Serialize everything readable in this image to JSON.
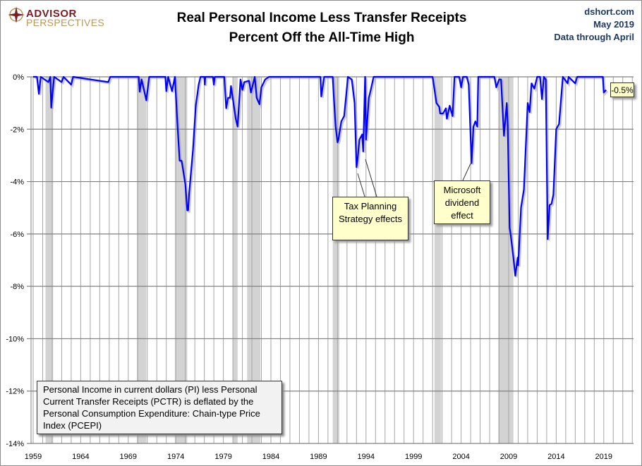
{
  "logo": {
    "line1": "ADVISOR",
    "line2": "PERSPECTIVES"
  },
  "title": {
    "line1": "Real Personal Income Less Transfer Receipts",
    "line2": "Percent Off the All-Time High"
  },
  "source": {
    "site": "dshort.com",
    "date": "May 2019",
    "through": "Data through April"
  },
  "note": "Personal Income in current dollars  (PI) less Personal Current Transfer Receipts (PCTR) is deflated by the Personal Consumption Expenditure: Chain-type Price Index (PCEPI)",
  "annotations": {
    "tax": "Tax Planning Strategy effects",
    "microsoft": "Microsoft dividend effect",
    "last_value": "-0.5%"
  },
  "colors": {
    "line": "#0000ff",
    "recession": "#d3d3d3",
    "label_bg": "#ffffcc"
  },
  "chart_data": {
    "type": "line",
    "title": "Real Personal Income Less Transfer Receipts Percent Off the All-Time High",
    "xlim": [
      1959,
      2022.2
    ],
    "ylim": [
      -14,
      0
    ],
    "x_ticks": [
      "1959",
      "1964",
      "1969",
      "1974",
      "1979",
      "1984",
      "1989",
      "1994",
      "1999",
      "2004",
      "2009",
      "2014",
      "2019"
    ],
    "y_ticks": [
      "0%",
      "-2%",
      "-4%",
      "-6%",
      "-8%",
      "-10%",
      "-12%",
      "-14%"
    ],
    "grid": true,
    "recessions": [
      [
        1960.3,
        1961.1
      ],
      [
        1969.9,
        1970.9
      ],
      [
        1973.9,
        1975.2
      ],
      [
        1980.0,
        1980.5
      ],
      [
        1981.5,
        1982.9
      ],
      [
        1990.5,
        1991.2
      ],
      [
        2001.2,
        2001.9
      ],
      [
        2007.9,
        2009.5
      ]
    ],
    "series": [
      {
        "points": [
          [
            1959.0,
            0
          ],
          [
            1959.4,
            0
          ],
          [
            1959.6,
            -0.65
          ],
          [
            1959.8,
            0
          ],
          [
            1960.6,
            -0.2
          ],
          [
            1960.8,
            0
          ],
          [
            1960.9,
            -1.18
          ],
          [
            1961.2,
            0
          ],
          [
            1962.0,
            -0.2
          ],
          [
            1962.2,
            0
          ],
          [
            1963.0,
            -0.3
          ],
          [
            1963.2,
            0
          ],
          [
            1966.9,
            -0.2
          ],
          [
            1967.1,
            0
          ],
          [
            1970.1,
            0
          ],
          [
            1970.2,
            -0.57
          ],
          [
            1970.4,
            -0.1
          ],
          [
            1970.9,
            -0.9
          ],
          [
            1971.2,
            0
          ],
          [
            1972.9,
            0
          ],
          [
            1973.0,
            -0.55
          ],
          [
            1973.2,
            0
          ],
          [
            1973.6,
            -0.55
          ],
          [
            1973.9,
            0
          ],
          [
            1974.2,
            -2.0
          ],
          [
            1974.4,
            -3.2
          ],
          [
            1974.6,
            -3.2
          ],
          [
            1974.7,
            -3.4
          ],
          [
            1975.0,
            -4.1
          ],
          [
            1975.2,
            -5.1
          ],
          [
            1975.3,
            -5.1
          ],
          [
            1975.4,
            -4.45
          ],
          [
            1975.8,
            -2.8
          ],
          [
            1976.1,
            -1.1
          ],
          [
            1976.4,
            -0.3
          ],
          [
            1976.6,
            0
          ],
          [
            1977.0,
            0
          ],
          [
            1977.05,
            -0.3
          ],
          [
            1977.1,
            0
          ],
          [
            1977.9,
            0
          ],
          [
            1978.0,
            -0.3
          ],
          [
            1978.1,
            0
          ],
          [
            1979.1,
            0
          ],
          [
            1979.3,
            -1.2
          ],
          [
            1979.5,
            -0.8
          ],
          [
            1979.7,
            -0.8
          ],
          [
            1979.8,
            -0.35
          ],
          [
            1980.3,
            -1.6
          ],
          [
            1980.5,
            -1.9
          ],
          [
            1980.8,
            -0.1
          ],
          [
            1981.0,
            -0.5
          ],
          [
            1981.2,
            -0.2
          ],
          [
            1981.7,
            -0.15
          ],
          [
            1981.9,
            -0.6
          ],
          [
            1982.3,
            0
          ],
          [
            1982.5,
            -0.8
          ],
          [
            1982.8,
            -1.05
          ],
          [
            1983.0,
            -0.4
          ],
          [
            1983.4,
            -0.1
          ],
          [
            1983.8,
            0
          ],
          [
            1989.2,
            0
          ],
          [
            1989.3,
            -0.75
          ],
          [
            1989.6,
            0
          ],
          [
            1990.5,
            0
          ],
          [
            1990.6,
            -0.7
          ],
          [
            1990.8,
            -1.9
          ],
          [
            1991.0,
            -2.5
          ],
          [
            1991.1,
            -2.4
          ],
          [
            1991.4,
            -1.7
          ],
          [
            1991.7,
            -1.5
          ],
          [
            1992.1,
            0
          ],
          [
            1992.5,
            -0.1
          ],
          [
            1992.8,
            -1.0
          ],
          [
            1993.0,
            -3.45
          ],
          [
            1993.1,
            -3.2
          ],
          [
            1993.3,
            -2.4
          ],
          [
            1993.6,
            -2.2
          ],
          [
            1993.7,
            -2.85
          ],
          [
            1993.9,
            0
          ],
          [
            1994.0,
            -2.4
          ],
          [
            1994.3,
            -0.8
          ],
          [
            1994.5,
            -0.5
          ],
          [
            1994.8,
            0
          ],
          [
            2001.0,
            0
          ],
          [
            2001.4,
            -1.0
          ],
          [
            2001.7,
            -1.15
          ],
          [
            2001.8,
            -1.4
          ],
          [
            2002.1,
            -1.4
          ],
          [
            2002.4,
            -1.2
          ],
          [
            2002.5,
            -1.6
          ],
          [
            2002.8,
            -1.1
          ],
          [
            2003.1,
            -1.5
          ],
          [
            2003.3,
            0
          ],
          [
            2003.8,
            0
          ],
          [
            2004.0,
            -0.4
          ],
          [
            2004.2,
            0
          ],
          [
            2004.6,
            0
          ],
          [
            2004.8,
            -0.3
          ],
          [
            2005.1,
            -3.3
          ],
          [
            2005.3,
            -1.9
          ],
          [
            2005.5,
            -1.7
          ],
          [
            2005.7,
            -1.9
          ],
          [
            2005.8,
            0
          ],
          [
            2007.5,
            0
          ],
          [
            2007.7,
            -0.4
          ],
          [
            2008.0,
            -0.1
          ],
          [
            2008.2,
            -0.1
          ],
          [
            2008.5,
            -2.25
          ],
          [
            2008.8,
            -1.0
          ],
          [
            2008.9,
            -1.9
          ],
          [
            2009.1,
            -5.75
          ],
          [
            2009.2,
            -6.0
          ],
          [
            2009.5,
            -6.9
          ],
          [
            2009.7,
            -7.6
          ],
          [
            2009.95,
            -6.9
          ],
          [
            2010.0,
            -7.2
          ],
          [
            2010.3,
            -5.0
          ],
          [
            2010.6,
            -4.3
          ],
          [
            2011.0,
            -1.0
          ],
          [
            2011.2,
            -1.35
          ],
          [
            2011.4,
            -0.25
          ],
          [
            2011.7,
            -0.45
          ],
          [
            2012.0,
            0
          ],
          [
            2012.3,
            0
          ],
          [
            2012.5,
            -0.85
          ],
          [
            2012.7,
            0
          ],
          [
            2012.9,
            -0.1
          ],
          [
            2013.1,
            -6.2
          ],
          [
            2013.3,
            -4.9
          ],
          [
            2013.5,
            -4.85
          ],
          [
            2013.7,
            -4.5
          ],
          [
            2014.0,
            -2.0
          ],
          [
            2014.3,
            -1.8
          ],
          [
            2014.7,
            0
          ],
          [
            2015.2,
            -0.25
          ],
          [
            2015.3,
            0
          ],
          [
            2016.0,
            -0.25
          ],
          [
            2016.2,
            0
          ],
          [
            2018.9,
            0
          ],
          [
            2019.0,
            -0.6
          ],
          [
            2019.25,
            -0.5
          ]
        ]
      }
    ]
  }
}
